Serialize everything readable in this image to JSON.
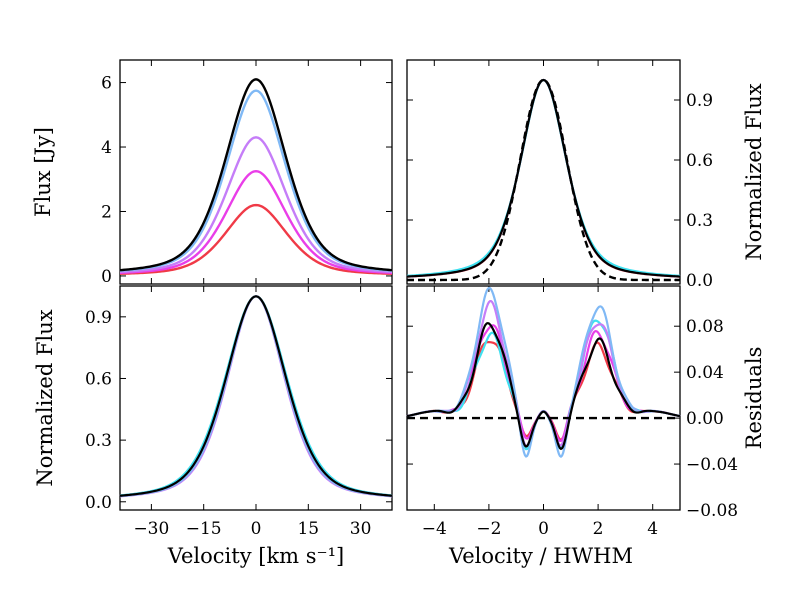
{
  "chart_data": [
    {
      "type": "line",
      "panel": "top-left",
      "title": "",
      "xlabel": "",
      "ylabel": "Flux [Jy]",
      "xlim": [
        -39,
        39
      ],
      "ylim": [
        -0.25,
        6.7
      ],
      "yticks": [
        0,
        2,
        4,
        6
      ],
      "ytick_labels": [
        "0",
        "2",
        "4",
        "6"
      ],
      "profile_model": "lorentz-gauss blend, width in km/s",
      "series": [
        {
          "name": "red",
          "color": "#f03a47",
          "peak": 2.2,
          "width": 10.5
        },
        {
          "name": "magenta",
          "color": "#e93ee8",
          "peak": 3.25,
          "width": 10.3
        },
        {
          "name": "violet",
          "color": "#c57df8",
          "peak": 4.3,
          "width": 10.2
        },
        {
          "name": "light-blue",
          "color": "#80b9f5",
          "peak": 5.75,
          "width": 10.1
        },
        {
          "name": "black",
          "color": "#000000",
          "peak": 6.1,
          "width": 10.3
        }
      ]
    },
    {
      "type": "line",
      "panel": "top-right",
      "xlabel": "",
      "ylabel": "Normalized Flux",
      "xlim": [
        -5,
        5
      ],
      "ylim": [
        -0.02,
        1.1
      ],
      "yticks": [
        0.0,
        0.3,
        0.6,
        0.9
      ],
      "ytick_labels": [
        "0.0",
        "0.3",
        "0.6",
        "0.9"
      ],
      "series": [
        {
          "name": "red",
          "color": "#f03a47"
        },
        {
          "name": "magenta",
          "color": "#e93ee8"
        },
        {
          "name": "violet",
          "color": "#c57df8"
        },
        {
          "name": "light-blue",
          "color": "#80b9f5"
        },
        {
          "name": "cyan",
          "color": "#40e0f0"
        },
        {
          "name": "black",
          "color": "#000000"
        },
        {
          "name": "gaussian",
          "color": "#000000",
          "dashed": true
        }
      ]
    },
    {
      "type": "line",
      "panel": "bottom-left",
      "xlabel": "Velocity [km s⁻¹]",
      "ylabel": "Normalized Flux",
      "xlim": [
        -39,
        39
      ],
      "ylim": [
        -0.04,
        1.05
      ],
      "xticks": [
        -30,
        -15,
        0,
        15,
        30
      ],
      "xtick_labels": [
        "−30",
        "−15",
        "0",
        "15",
        "30"
      ],
      "yticks": [
        0.0,
        0.3,
        0.6,
        0.9
      ],
      "ytick_labels": [
        "0.0",
        "0.3",
        "0.6",
        "0.9"
      ],
      "series": [
        {
          "name": "red",
          "color": "#f03a47",
          "width": 10.5
        },
        {
          "name": "magenta",
          "color": "#e93ee8",
          "width": 10.2
        },
        {
          "name": "violet",
          "color": "#c57df8",
          "width": 9.8
        },
        {
          "name": "light-blue",
          "color": "#80b9f5",
          "width": 10.0
        },
        {
          "name": "cyan",
          "color": "#40e0f0",
          "width": 10.6
        },
        {
          "name": "black",
          "color": "#000000",
          "width": 10.3
        }
      ]
    },
    {
      "type": "line",
      "panel": "bottom-right",
      "xlabel": "Velocity / HWHM",
      "ylabel": "Residuals",
      "xlim": [
        -5,
        5
      ],
      "ylim": [
        -0.08,
        0.115
      ],
      "xticks": [
        -4,
        -2,
        0,
        2,
        4
      ],
      "xtick_labels": [
        "−4",
        "−2",
        "0",
        "2",
        "4"
      ],
      "yticks": [
        -0.08,
        -0.04,
        0.0,
        0.04,
        0.08
      ],
      "ytick_labels": [
        "−0.08",
        "−0.04",
        "0.00",
        "0.04",
        "0.08"
      ],
      "series": [
        {
          "name": "red",
          "color": "#f03a47",
          "amp_left": 0.07,
          "amp_right": 0.062,
          "dip": 0.02
        },
        {
          "name": "magenta",
          "color": "#e93ee8",
          "amp_left": 0.082,
          "amp_right": 0.074,
          "dip": 0.022
        },
        {
          "name": "cyan",
          "color": "#40e0f0",
          "amp_left": 0.072,
          "amp_right": 0.087,
          "dip": 0.03
        },
        {
          "name": "violet",
          "color": "#c57df8",
          "amp_left": 0.098,
          "amp_right": 0.085,
          "dip": 0.028
        },
        {
          "name": "light-blue",
          "color": "#80b9f5",
          "amp_left": 0.11,
          "amp_right": 0.097,
          "dip": 0.038
        },
        {
          "name": "black",
          "color": "#000000",
          "amp_left": 0.082,
          "amp_right": 0.066,
          "dip": 0.029
        },
        {
          "name": "zero",
          "color": "#000000",
          "dashed": true,
          "value": 0.0
        }
      ]
    }
  ]
}
